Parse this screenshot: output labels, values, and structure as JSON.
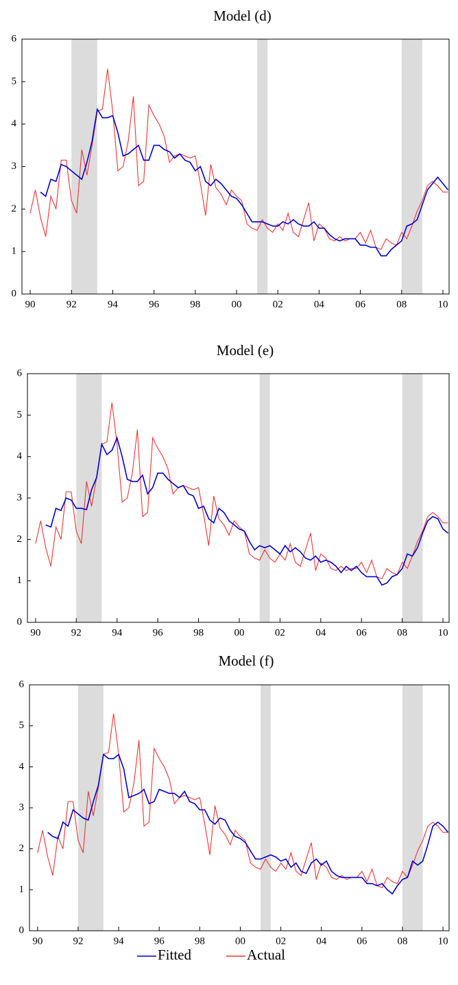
{
  "chart_data": [
    {
      "type": "line",
      "title": "Model (d)",
      "x": [
        1990,
        1990.25,
        1990.5,
        1990.75,
        1991,
        1991.25,
        1991.5,
        1991.75,
        1992,
        1992.25,
        1992.5,
        1992.75,
        1993,
        1993.25,
        1993.5,
        1993.75,
        1994,
        1994.25,
        1994.5,
        1994.75,
        1995,
        1995.25,
        1995.5,
        1995.75,
        1996,
        1996.25,
        1996.5,
        1996.75,
        1997,
        1997.25,
        1997.5,
        1997.75,
        1998,
        1998.25,
        1998.5,
        1998.75,
        1999,
        1999.25,
        1999.5,
        1999.75,
        2000,
        2000.25,
        2000.5,
        2000.75,
        2001,
        2001.25,
        2001.5,
        2001.75,
        2002,
        2002.25,
        2002.5,
        2002.75,
        2003,
        2003.25,
        2003.5,
        2003.75,
        2004,
        2004.25,
        2004.5,
        2004.75,
        2005,
        2005.25,
        2005.5,
        2005.75,
        2006,
        2006.25,
        2006.5,
        2006.75,
        2007,
        2007.25,
        2007.5,
        2007.75,
        2008,
        2008.25,
        2008.5,
        2008.75,
        2009,
        2009.25,
        2009.5,
        2009.75,
        2010,
        2010.25
      ],
      "series": [
        {
          "color": "#0000cc",
          "values": [
            null,
            null,
            2.4,
            2.3,
            2.7,
            2.65,
            3.05,
            3.0,
            2.9,
            2.8,
            2.7,
            3.1,
            3.6,
            4.35,
            4.15,
            4.15,
            4.2,
            3.8,
            3.25,
            3.3,
            3.4,
            3.5,
            3.15,
            3.15,
            3.5,
            3.5,
            3.4,
            3.35,
            3.2,
            3.3,
            3.15,
            3.1,
            2.9,
            3.0,
            2.65,
            2.55,
            2.7,
            2.6,
            2.45,
            2.3,
            2.25,
            2.1,
            1.9,
            1.7,
            1.7,
            1.7,
            1.65,
            1.6,
            1.6,
            1.7,
            1.65,
            1.75,
            1.65,
            1.6,
            1.6,
            1.7,
            1.55,
            1.55,
            1.4,
            1.3,
            1.25,
            1.3,
            1.3,
            1.3,
            1.15,
            1.15,
            1.1,
            1.1,
            0.9,
            0.9,
            1.05,
            1.15,
            1.25,
            1.6,
            1.65,
            1.75,
            2.1,
            2.45,
            2.6,
            2.75,
            2.6,
            2.45
          ]
        },
        {
          "color": "#ee3333",
          "values": [
            1.9,
            2.45,
            1.8,
            1.35,
            2.3,
            2.0,
            3.15,
            3.15,
            2.2,
            1.9,
            3.4,
            2.8,
            3.5,
            4.3,
            4.35,
            5.3,
            4.3,
            2.9,
            3.0,
            3.6,
            4.65,
            2.55,
            2.65,
            4.45,
            4.2,
            4.0,
            3.7,
            3.1,
            3.25,
            3.3,
            3.25,
            3.2,
            3.25,
            2.6,
            1.85,
            3.05,
            2.5,
            2.35,
            2.1,
            2.45,
            2.3,
            2.2,
            1.65,
            1.55,
            1.5,
            1.75,
            1.55,
            1.45,
            1.65,
            1.5,
            1.9,
            1.45,
            1.35,
            1.75,
            2.15,
            1.25,
            1.65,
            1.55,
            1.3,
            1.25,
            1.35,
            1.25,
            1.3,
            1.3,
            1.45,
            1.2,
            1.5,
            1.1,
            1.05,
            1.3,
            1.2,
            1.15,
            1.45,
            1.3,
            1.6,
            1.95,
            2.2,
            2.55,
            2.65,
            2.55,
            2.4,
            2.4
          ]
        }
      ],
      "shaded": [
        [
          1992,
          1993.25
        ],
        [
          2001,
          2001.5
        ],
        [
          2008,
          2009
        ]
      ],
      "xlim": [
        1989.6,
        2010.3
      ],
      "xticks": [
        {
          "value": 1990,
          "label": "90"
        },
        {
          "value": 1992,
          "label": "92"
        },
        {
          "value": 1994,
          "label": "94"
        },
        {
          "value": 1996,
          "label": "96"
        },
        {
          "value": 1998,
          "label": "98"
        },
        {
          "value": 2000,
          "label": "00"
        },
        {
          "value": 2002,
          "label": "02"
        },
        {
          "value": 2004,
          "label": "04"
        },
        {
          "value": 2006,
          "label": "06"
        },
        {
          "value": 2008,
          "label": "08"
        },
        {
          "value": 2010,
          "label": "10"
        }
      ],
      "ylim": [
        0,
        6
      ],
      "yticks": [
        0,
        1,
        2,
        3,
        4,
        5,
        6
      ]
    },
    {
      "type": "line",
      "title": "Model (e)",
      "x": [
        1990,
        1990.25,
        1990.5,
        1990.75,
        1991,
        1991.25,
        1991.5,
        1991.75,
        1992,
        1992.25,
        1992.5,
        1992.75,
        1993,
        1993.25,
        1993.5,
        1993.75,
        1994,
        1994.25,
        1994.5,
        1994.75,
        1995,
        1995.25,
        1995.5,
        1995.75,
        1996,
        1996.25,
        1996.5,
        1996.75,
        1997,
        1997.25,
        1997.5,
        1997.75,
        1998,
        1998.25,
        1998.5,
        1998.75,
        1999,
        1999.25,
        1999.5,
        1999.75,
        2000,
        2000.25,
        2000.5,
        2000.75,
        2001,
        2001.25,
        2001.5,
        2001.75,
        2002,
        2002.25,
        2002.5,
        2002.75,
        2003,
        2003.25,
        2003.5,
        2003.75,
        2004,
        2004.25,
        2004.5,
        2004.75,
        2005,
        2005.25,
        2005.5,
        2005.75,
        2006,
        2006.25,
        2006.5,
        2006.75,
        2007,
        2007.25,
        2007.5,
        2007.75,
        2008,
        2008.25,
        2008.5,
        2008.75,
        2009,
        2009.25,
        2009.5,
        2009.75,
        2010,
        2010.25
      ],
      "series": [
        {
          "color": "#0000cc",
          "values": [
            null,
            null,
            2.35,
            2.3,
            2.75,
            2.7,
            3.0,
            2.95,
            2.75,
            2.75,
            2.72,
            3.2,
            3.5,
            4.3,
            4.05,
            4.15,
            4.45,
            4.0,
            3.45,
            3.4,
            3.4,
            3.55,
            3.1,
            3.25,
            3.6,
            3.6,
            3.45,
            3.35,
            3.25,
            3.3,
            3.1,
            3.05,
            2.75,
            2.8,
            2.5,
            2.4,
            2.75,
            2.65,
            2.45,
            2.35,
            2.25,
            2.2,
            1.95,
            1.75,
            1.85,
            1.8,
            1.85,
            1.75,
            1.65,
            1.85,
            1.7,
            1.8,
            1.7,
            1.55,
            1.5,
            1.6,
            1.45,
            1.5,
            1.45,
            1.35,
            1.2,
            1.35,
            1.25,
            1.35,
            1.2,
            1.1,
            1.1,
            1.1,
            0.9,
            0.95,
            1.1,
            1.15,
            1.3,
            1.65,
            1.6,
            1.8,
            2.15,
            2.45,
            2.55,
            2.5,
            2.25,
            2.15
          ]
        },
        {
          "color": "#ee3333",
          "values": [
            1.9,
            2.45,
            1.8,
            1.35,
            2.3,
            2.0,
            3.15,
            3.15,
            2.2,
            1.9,
            3.4,
            2.8,
            3.5,
            4.3,
            4.35,
            5.3,
            4.3,
            2.9,
            3.0,
            3.6,
            4.65,
            2.55,
            2.65,
            4.45,
            4.2,
            4.0,
            3.7,
            3.1,
            3.25,
            3.3,
            3.25,
            3.2,
            3.25,
            2.6,
            1.85,
            3.05,
            2.5,
            2.35,
            2.1,
            2.45,
            2.3,
            2.2,
            1.65,
            1.55,
            1.5,
            1.75,
            1.55,
            1.45,
            1.65,
            1.5,
            1.9,
            1.45,
            1.35,
            1.75,
            2.15,
            1.25,
            1.65,
            1.55,
            1.3,
            1.25,
            1.35,
            1.25,
            1.3,
            1.3,
            1.45,
            1.2,
            1.5,
            1.1,
            1.05,
            1.3,
            1.2,
            1.15,
            1.45,
            1.3,
            1.6,
            1.95,
            2.2,
            2.55,
            2.65,
            2.55,
            2.4,
            2.4
          ]
        }
      ],
      "shaded": [
        [
          1992,
          1993.25
        ],
        [
          2001,
          2001.5
        ],
        [
          2008,
          2009
        ]
      ],
      "xlim": [
        1989.6,
        2010.3
      ],
      "xticks": [
        {
          "value": 1990,
          "label": "90"
        },
        {
          "value": 1992,
          "label": "92"
        },
        {
          "value": 1994,
          "label": "94"
        },
        {
          "value": 1996,
          "label": "96"
        },
        {
          "value": 1998,
          "label": "98"
        },
        {
          "value": 2000,
          "label": "00"
        },
        {
          "value": 2002,
          "label": "02"
        },
        {
          "value": 2004,
          "label": "04"
        },
        {
          "value": 2006,
          "label": "06"
        },
        {
          "value": 2008,
          "label": "08"
        },
        {
          "value": 2010,
          "label": "10"
        }
      ],
      "ylim": [
        0,
        6
      ],
      "yticks": [
        0,
        1,
        2,
        3,
        4,
        5,
        6
      ]
    },
    {
      "type": "line",
      "title": "Model (f)",
      "x": [
        1990,
        1990.25,
        1990.5,
        1990.75,
        1991,
        1991.25,
        1991.5,
        1991.75,
        1992,
        1992.25,
        1992.5,
        1992.75,
        1993,
        1993.25,
        1993.5,
        1993.75,
        1994,
        1994.25,
        1994.5,
        1994.75,
        1995,
        1995.25,
        1995.5,
        1995.75,
        1996,
        1996.25,
        1996.5,
        1996.75,
        1997,
        1997.25,
        1997.5,
        1997.75,
        1998,
        1998.25,
        1998.5,
        1998.75,
        1999,
        1999.25,
        1999.5,
        1999.75,
        2000,
        2000.25,
        2000.5,
        2000.75,
        2001,
        2001.25,
        2001.5,
        2001.75,
        2002,
        2002.25,
        2002.5,
        2002.75,
        2003,
        2003.25,
        2003.5,
        2003.75,
        2004,
        2004.25,
        2004.5,
        2004.75,
        2005,
        2005.25,
        2005.5,
        2005.75,
        2006,
        2006.25,
        2006.5,
        2006.75,
        2007,
        2007.25,
        2007.5,
        2007.75,
        2008,
        2008.25,
        2008.5,
        2008.75,
        2009,
        2009.25,
        2009.5,
        2009.75,
        2010,
        2010.25
      ],
      "series": [
        {
          "name": "Fitted",
          "color": "#0000cc",
          "values": [
            null,
            null,
            2.4,
            2.3,
            2.25,
            2.65,
            2.55,
            2.95,
            2.85,
            2.75,
            2.7,
            3.15,
            3.55,
            4.3,
            4.2,
            4.2,
            4.3,
            3.95,
            3.25,
            3.3,
            3.35,
            3.45,
            3.1,
            3.15,
            3.45,
            3.4,
            3.35,
            3.35,
            3.25,
            3.4,
            3.15,
            3.1,
            2.95,
            2.95,
            2.7,
            2.6,
            2.75,
            2.7,
            2.45,
            2.3,
            2.25,
            2.15,
            1.95,
            1.75,
            1.75,
            1.8,
            1.85,
            1.8,
            1.7,
            1.75,
            1.55,
            1.65,
            1.45,
            1.4,
            1.65,
            1.75,
            1.6,
            1.7,
            1.45,
            1.35,
            1.3,
            1.3,
            1.3,
            1.3,
            1.3,
            1.15,
            1.15,
            1.1,
            1.15,
            1.0,
            0.9,
            1.1,
            1.25,
            1.3,
            1.7,
            1.6,
            1.7,
            2.1,
            2.55,
            2.65,
            2.55,
            2.4
          ]
        },
        {
          "name": "Actual",
          "color": "#ee3333",
          "values": [
            1.9,
            2.45,
            1.8,
            1.35,
            2.3,
            2.0,
            3.15,
            3.15,
            2.2,
            1.9,
            3.4,
            2.8,
            3.5,
            4.3,
            4.35,
            5.3,
            4.3,
            2.9,
            3.0,
            3.6,
            4.65,
            2.55,
            2.65,
            4.45,
            4.2,
            4.0,
            3.7,
            3.1,
            3.25,
            3.3,
            3.25,
            3.2,
            3.25,
            2.6,
            1.85,
            3.05,
            2.5,
            2.35,
            2.1,
            2.45,
            2.3,
            2.2,
            1.65,
            1.55,
            1.5,
            1.75,
            1.55,
            1.45,
            1.65,
            1.5,
            1.9,
            1.45,
            1.35,
            1.75,
            2.15,
            1.25,
            1.65,
            1.55,
            1.3,
            1.25,
            1.35,
            1.25,
            1.3,
            1.3,
            1.45,
            1.2,
            1.5,
            1.1,
            1.05,
            1.3,
            1.2,
            1.15,
            1.45,
            1.3,
            1.6,
            1.95,
            2.2,
            2.55,
            2.65,
            2.55,
            2.4,
            2.4
          ]
        }
      ],
      "shaded": [
        [
          1992,
          1993.25
        ],
        [
          2001,
          2001.5
        ],
        [
          2008,
          2009
        ]
      ],
      "xlim": [
        1989.6,
        2010.3
      ],
      "xticks": [
        {
          "value": 1990,
          "label": "90"
        },
        {
          "value": 1992,
          "label": "92"
        },
        {
          "value": 1994,
          "label": "94"
        },
        {
          "value": 1996,
          "label": "96"
        },
        {
          "value": 1998,
          "label": "98"
        },
        {
          "value": 2000,
          "label": "00"
        },
        {
          "value": 2002,
          "label": "02"
        },
        {
          "value": 2004,
          "label": "04"
        },
        {
          "value": 2006,
          "label": "06"
        },
        {
          "value": 2008,
          "label": "08"
        },
        {
          "value": 2010,
          "label": "10"
        }
      ],
      "ylim": [
        0,
        6
      ],
      "yticks": [
        0,
        1,
        2,
        3,
        4,
        5,
        6
      ]
    }
  ]
}
